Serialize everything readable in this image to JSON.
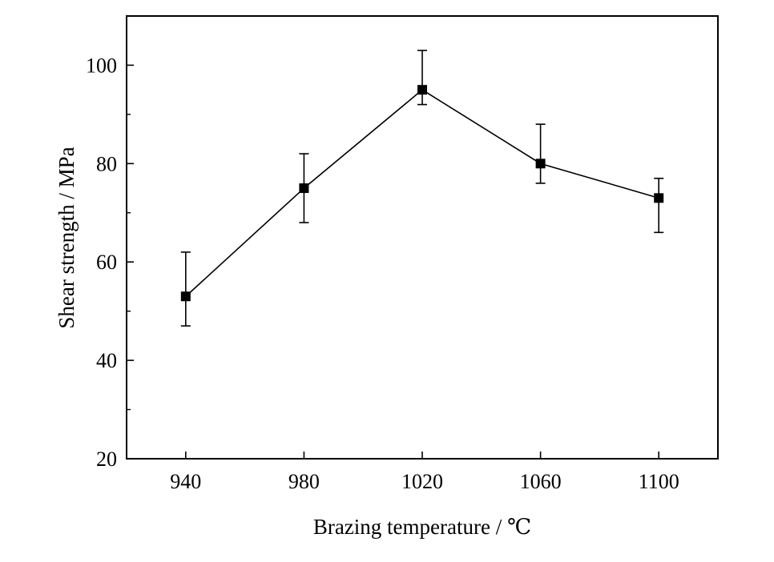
{
  "chart_data": {
    "type": "line",
    "title": "",
    "xlabel": "Brazing temperature / ℃",
    "ylabel": "Shear strength / MPa",
    "x": [
      940,
      980,
      1020,
      1060,
      1100
    ],
    "xticks": [
      "940",
      "980",
      "1020",
      "1060",
      "1100"
    ],
    "xlim": [
      920,
      1120
    ],
    "ylim": [
      20,
      110
    ],
    "yticks": [
      20,
      40,
      60,
      80,
      100
    ],
    "ytick_labels": [
      "20",
      "40",
      "60",
      "80",
      "100"
    ],
    "grid": false,
    "legend": "none",
    "marker": "square",
    "color": "#000000",
    "series": [
      {
        "values": [
          53,
          75,
          95,
          80,
          73
        ],
        "error_low": [
          47,
          68,
          92,
          76,
          66
        ],
        "error_high": [
          62,
          82,
          103,
          88,
          77
        ]
      }
    ]
  }
}
